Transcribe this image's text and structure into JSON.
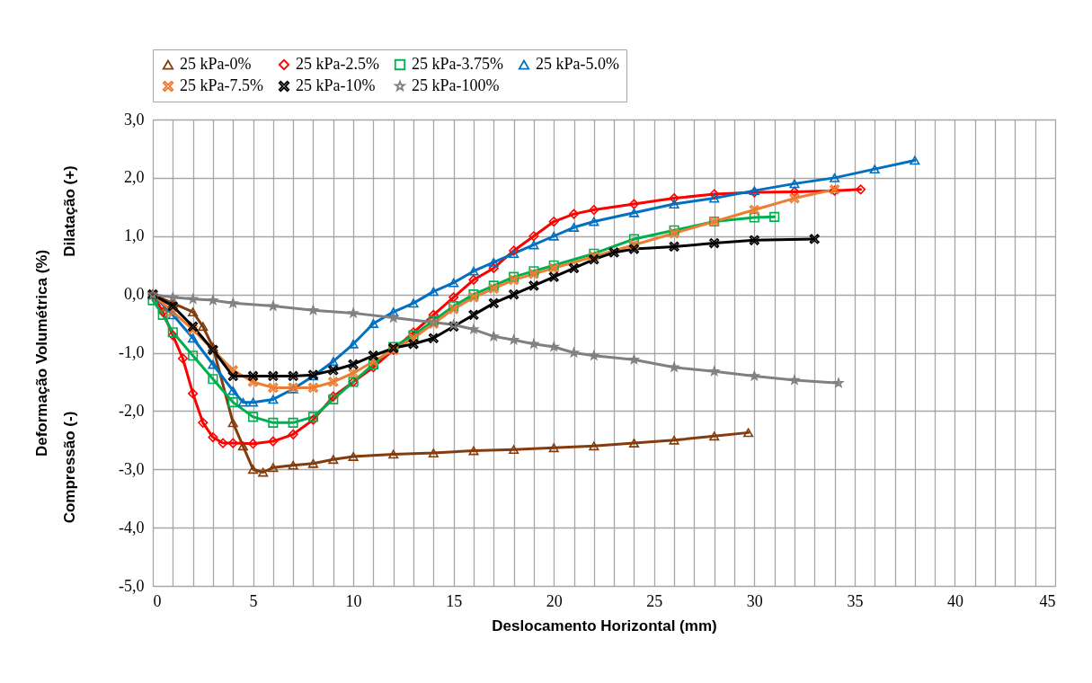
{
  "chart_data": {
    "type": "line",
    "xlabel": "Deslocamento Horizontal (mm)",
    "ylabel": "Deformação Volumétrica (%)",
    "annotations": [
      "Dilatação (+)",
      "Compressão (-)"
    ],
    "xlim": [
      0,
      45
    ],
    "ylim": [
      -5,
      3
    ],
    "xticks": [
      0,
      {
        "value": 1,
        "label": null
      },
      {
        "value": 2,
        "label": null
      },
      {
        "value": 3,
        "label": null
      },
      {
        "value": 4,
        "label": null
      },
      5,
      {
        "value": 6,
        "label": null
      },
      {
        "value": 7,
        "label": null
      },
      {
        "value": 8,
        "label": null
      },
      {
        "value": 9,
        "label": null
      },
      10,
      {
        "value": 11,
        "label": null
      },
      {
        "value": 12,
        "label": null
      },
      {
        "value": 13,
        "label": null
      },
      {
        "value": 14,
        "label": null
      },
      15,
      {
        "value": 16,
        "label": null
      },
      {
        "value": 17,
        "label": null
      },
      {
        "value": 18,
        "label": null
      },
      {
        "value": 19,
        "label": null
      },
      20,
      {
        "value": 21,
        "label": null
      },
      {
        "value": 22,
        "label": null
      },
      {
        "value": 23,
        "label": null
      },
      {
        "value": 24,
        "label": null
      },
      25,
      {
        "value": 26,
        "label": null
      },
      {
        "value": 27,
        "label": null
      },
      {
        "value": 28,
        "label": null
      },
      {
        "value": 29,
        "label": null
      },
      30,
      {
        "value": 31,
        "label": null
      },
      {
        "value": 32,
        "label": null
      },
      {
        "value": 33,
        "label": null
      },
      {
        "value": 34,
        "label": null
      },
      35,
      {
        "value": 36,
        "label": null
      },
      {
        "value": 37,
        "label": null
      },
      {
        "value": 38,
        "label": null
      },
      {
        "value": 39,
        "label": null
      },
      40,
      {
        "value": 41,
        "label": null
      },
      {
        "value": 42,
        "label": null
      },
      {
        "value": 43,
        "label": null
      },
      {
        "value": 44,
        "label": null
      },
      45
    ],
    "yticks": [
      {
        "value": -5,
        "label": "-5,0"
      },
      {
        "value": -4,
        "label": "-4,0"
      },
      {
        "value": -3,
        "label": "-3,0"
      },
      {
        "value": -2,
        "label": "-2,0"
      },
      {
        "value": -1,
        "label": "-1,0"
      },
      {
        "value": 0,
        "label": "0,0"
      },
      {
        "value": 1,
        "label": "1,0"
      },
      {
        "value": 2,
        "label": "2,0"
      },
      {
        "value": 3,
        "label": "3,0"
      }
    ],
    "grid": true,
    "legend": "top",
    "line_style": "solid",
    "series": [
      {
        "name": "25 kPa-0%",
        "color": "#843c0c",
        "marker": "triangle",
        "x": [
          0,
          1,
          2,
          2.5,
          3,
          4,
          4.5,
          5,
          5.5,
          6,
          7,
          8,
          9,
          10,
          12,
          14,
          16,
          18,
          20,
          22,
          24,
          26,
          28,
          29.7
        ],
        "values": [
          0,
          -0.15,
          -0.3,
          -0.55,
          -0.9,
          -2.2,
          -2.6,
          -3.0,
          -3.05,
          -2.97,
          -2.93,
          -2.9,
          -2.83,
          -2.78,
          -2.74,
          -2.72,
          -2.68,
          -2.66,
          -2.63,
          -2.6,
          -2.55,
          -2.5,
          -2.43,
          -2.37
        ]
      },
      {
        "name": "25 kPa-2.5%",
        "color": "#ff0000",
        "marker": "diamond",
        "x": [
          0,
          0.5,
          1,
          1.5,
          2,
          2.5,
          3,
          3.5,
          4,
          5,
          6,
          7,
          8,
          9,
          10,
          11,
          12,
          13,
          14,
          15,
          16,
          17,
          18,
          19,
          20,
          21,
          22,
          24,
          26,
          28,
          30,
          32,
          34,
          35.3
        ],
        "values": [
          0,
          -0.3,
          -0.7,
          -1.1,
          -1.7,
          -2.2,
          -2.45,
          -2.55,
          -2.55,
          -2.56,
          -2.52,
          -2.4,
          -2.15,
          -1.75,
          -1.5,
          -1.25,
          -0.95,
          -0.65,
          -0.35,
          -0.05,
          0.25,
          0.45,
          0.75,
          1.0,
          1.25,
          1.38,
          1.45,
          1.55,
          1.65,
          1.72,
          1.75,
          1.76,
          1.78,
          1.8
        ]
      },
      {
        "name": "25 kPa-3.75%",
        "color": "#00b050",
        "marker": "square",
        "x": [
          0,
          0.5,
          1,
          2,
          3,
          4,
          5,
          6,
          7,
          8,
          9,
          10,
          11,
          12,
          13,
          14,
          15,
          16,
          17,
          18,
          19,
          20,
          22,
          24,
          26,
          28,
          30,
          31
        ],
        "values": [
          -0.1,
          -0.35,
          -0.65,
          -1.05,
          -1.45,
          -1.85,
          -2.1,
          -2.2,
          -2.2,
          -2.1,
          -1.8,
          -1.5,
          -1.2,
          -0.9,
          -0.7,
          -0.45,
          -0.2,
          0.0,
          0.15,
          0.3,
          0.4,
          0.5,
          0.7,
          0.95,
          1.1,
          1.25,
          1.32,
          1.33
        ]
      },
      {
        "name": "25 kPa-5.0%",
        "color": "#0070c0",
        "marker": "triangle",
        "x": [
          0,
          1,
          2,
          3,
          4,
          4.5,
          5,
          6,
          7,
          8,
          9,
          10,
          11,
          12,
          13,
          14,
          15,
          16,
          17,
          18,
          19,
          20,
          21,
          22,
          24,
          26,
          28,
          30,
          32,
          34,
          36,
          38
        ],
        "values": [
          0,
          -0.35,
          -0.75,
          -1.2,
          -1.65,
          -1.85,
          -1.85,
          -1.8,
          -1.62,
          -1.4,
          -1.15,
          -0.85,
          -0.5,
          -0.3,
          -0.15,
          0.05,
          0.2,
          0.4,
          0.55,
          0.7,
          0.85,
          1.0,
          1.15,
          1.25,
          1.4,
          1.55,
          1.65,
          1.78,
          1.9,
          2.0,
          2.15,
          2.3
        ]
      },
      {
        "name": "25 kPa-7.5%",
        "color": "#ed7d31",
        "marker": "cross",
        "x": [
          0,
          1,
          2,
          3,
          4,
          5,
          6,
          7,
          8,
          9,
          10,
          11,
          12,
          13,
          14,
          15,
          16,
          17,
          18,
          19,
          20,
          22,
          24,
          26,
          28,
          30,
          32,
          34
        ],
        "values": [
          0,
          -0.3,
          -0.6,
          -0.95,
          -1.3,
          -1.5,
          -1.6,
          -1.6,
          -1.6,
          -1.5,
          -1.35,
          -1.15,
          -0.95,
          -0.75,
          -0.5,
          -0.25,
          -0.05,
          0.1,
          0.25,
          0.35,
          0.45,
          0.65,
          0.85,
          1.05,
          1.25,
          1.45,
          1.65,
          1.8
        ]
      },
      {
        "name": "25 kPa-10%",
        "color": "#000000",
        "marker": "cross",
        "x": [
          0,
          1,
          2,
          3,
          4,
          5,
          6,
          7,
          8,
          9,
          10,
          11,
          12,
          13,
          14,
          15,
          16,
          17,
          18,
          19,
          20,
          21,
          22,
          23,
          24,
          26,
          28,
          30,
          33
        ],
        "values": [
          0,
          -0.2,
          -0.55,
          -0.95,
          -1.4,
          -1.4,
          -1.4,
          -1.4,
          -1.38,
          -1.3,
          -1.2,
          -1.05,
          -0.92,
          -0.85,
          -0.75,
          -0.55,
          -0.35,
          -0.15,
          0.0,
          0.15,
          0.3,
          0.45,
          0.6,
          0.72,
          0.78,
          0.82,
          0.88,
          0.93,
          0.95
        ]
      },
      {
        "name": "25 kPa-100%",
        "color": "#808080",
        "marker": "star",
        "x": [
          0,
          1,
          2,
          3,
          4,
          6,
          8,
          10,
          12,
          14,
          15,
          16,
          17,
          18,
          19,
          20,
          21,
          22,
          24,
          26,
          28,
          30,
          32,
          34.2
        ],
        "values": [
          0,
          -0.05,
          -0.08,
          -0.1,
          -0.15,
          -0.2,
          -0.27,
          -0.32,
          -0.4,
          -0.48,
          -0.52,
          -0.6,
          -0.72,
          -0.78,
          -0.85,
          -0.9,
          -1.0,
          -1.05,
          -1.12,
          -1.25,
          -1.32,
          -1.4,
          -1.47,
          -1.52
        ]
      }
    ]
  }
}
